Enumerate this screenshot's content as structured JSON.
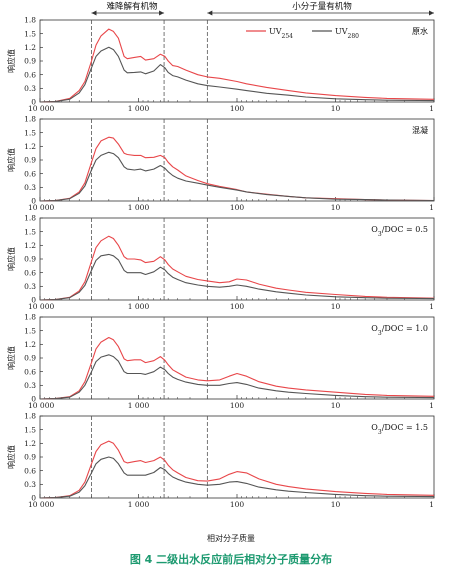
{
  "caption": "图 4 二级出水反应前后相对分子质量分布",
  "regions": {
    "left": "难降解有机物",
    "right": "小分子量有机物"
  },
  "xlabel": "相对分子质量",
  "ylabel": "响应值",
  "x_ticks": [
    "10 000",
    "1 000",
    "100",
    "10",
    "1"
  ],
  "y_ticks": [
    "0",
    "0.3",
    "0.6",
    "0.9",
    "1.2",
    "1.5",
    "1.8"
  ],
  "legend": [
    {
      "label": "UV",
      "sub": "254",
      "color": "#e8474a"
    },
    {
      "label": "UV",
      "sub": "280",
      "color": "#555555"
    }
  ],
  "chart_data": [
    {
      "type": "line",
      "panel_label": "原水",
      "xscale": "log",
      "xlim": [
        10000,
        1
      ],
      "ylim": [
        0,
        1.8
      ],
      "dividers": [
        3000,
        550,
        200
      ],
      "series": [
        {
          "name": "UV254",
          "x": [
            10000,
            7000,
            5000,
            4000,
            3500,
            3000,
            2700,
            2400,
            2000,
            1800,
            1600,
            1400,
            1300,
            1100,
            950,
            850,
            700,
            600,
            540,
            500,
            450,
            400,
            330,
            250,
            200,
            150,
            100,
            80,
            50,
            30,
            20,
            10,
            5,
            3,
            1
          ],
          "values": [
            0,
            0.01,
            0.08,
            0.25,
            0.45,
            0.9,
            1.25,
            1.45,
            1.6,
            1.55,
            1.4,
            1.0,
            0.95,
            0.98,
            1.0,
            0.92,
            0.95,
            1.05,
            1.0,
            0.9,
            0.8,
            0.78,
            0.7,
            0.6,
            0.55,
            0.52,
            0.45,
            0.4,
            0.32,
            0.25,
            0.2,
            0.14,
            0.1,
            0.08,
            0.06
          ]
        },
        {
          "name": "UV280",
          "x": [
            10000,
            7000,
            5000,
            4000,
            3500,
            3000,
            2700,
            2400,
            2000,
            1800,
            1600,
            1400,
            1300,
            1100,
            950,
            850,
            700,
            600,
            540,
            500,
            450,
            400,
            330,
            250,
            200,
            150,
            100,
            80,
            50,
            30,
            20,
            10,
            5,
            3,
            1
          ],
          "values": [
            0,
            0.01,
            0.06,
            0.2,
            0.38,
            0.75,
            1.0,
            1.12,
            1.2,
            1.15,
            1.0,
            0.7,
            0.64,
            0.65,
            0.66,
            0.62,
            0.68,
            0.82,
            0.75,
            0.65,
            0.58,
            0.55,
            0.48,
            0.4,
            0.36,
            0.33,
            0.28,
            0.25,
            0.19,
            0.15,
            0.11,
            0.07,
            0.05,
            0.04,
            0.03
          ]
        }
      ]
    },
    {
      "type": "line",
      "panel_label": "混凝",
      "xscale": "log",
      "xlim": [
        10000,
        1
      ],
      "ylim": [
        0,
        1.8
      ],
      "dividers": [
        3000,
        550,
        200
      ],
      "series": [
        {
          "name": "UV254",
          "x": [
            10000,
            7000,
            5000,
            4000,
            3500,
            3000,
            2700,
            2400,
            2000,
            1800,
            1600,
            1400,
            1300,
            1100,
            950,
            850,
            700,
            600,
            540,
            500,
            450,
            400,
            330,
            250,
            200,
            150,
            100,
            80,
            50,
            30,
            20,
            10,
            5,
            3,
            1
          ],
          "values": [
            0,
            0.01,
            0.06,
            0.2,
            0.4,
            0.85,
            1.15,
            1.32,
            1.4,
            1.38,
            1.25,
            1.05,
            1.02,
            1.0,
            1.0,
            0.95,
            0.96,
            1.0,
            0.95,
            0.85,
            0.75,
            0.68,
            0.55,
            0.45,
            0.38,
            0.32,
            0.25,
            0.2,
            0.15,
            0.1,
            0.07,
            0.05,
            0.03,
            0.02,
            0.01
          ]
        },
        {
          "name": "UV280",
          "x": [
            10000,
            7000,
            5000,
            4000,
            3500,
            3000,
            2700,
            2400,
            2000,
            1800,
            1600,
            1400,
            1300,
            1100,
            950,
            850,
            700,
            600,
            540,
            500,
            450,
            400,
            330,
            250,
            200,
            150,
            100,
            80,
            50,
            30,
            20,
            10,
            5,
            3,
            1
          ],
          "values": [
            0,
            0.01,
            0.05,
            0.17,
            0.33,
            0.68,
            0.9,
            1.0,
            1.07,
            1.04,
            0.95,
            0.75,
            0.7,
            0.68,
            0.7,
            0.66,
            0.7,
            0.78,
            0.72,
            0.64,
            0.56,
            0.5,
            0.44,
            0.39,
            0.35,
            0.3,
            0.24,
            0.2,
            0.14,
            0.1,
            0.07,
            0.04,
            0.03,
            0.02,
            0.01
          ]
        }
      ]
    },
    {
      "type": "line",
      "panel_label": "O3/DOC = 0.5",
      "xscale": "log",
      "xlim": [
        10000,
        1
      ],
      "ylim": [
        0,
        1.8
      ],
      "dividers": [
        3000,
        550,
        200
      ],
      "series": [
        {
          "name": "UV254",
          "x": [
            10000,
            7000,
            5000,
            4000,
            3500,
            3000,
            2700,
            2400,
            2000,
            1800,
            1600,
            1400,
            1300,
            1100,
            950,
            850,
            700,
            600,
            540,
            500,
            450,
            400,
            330,
            250,
            200,
            150,
            120,
            100,
            80,
            60,
            40,
            30,
            20,
            10,
            5,
            3,
            1
          ],
          "values": [
            0,
            0.01,
            0.06,
            0.2,
            0.4,
            0.85,
            1.15,
            1.3,
            1.4,
            1.35,
            1.2,
            0.95,
            0.9,
            0.9,
            0.88,
            0.82,
            0.85,
            0.95,
            0.88,
            0.78,
            0.68,
            0.62,
            0.52,
            0.45,
            0.42,
            0.38,
            0.4,
            0.46,
            0.44,
            0.35,
            0.26,
            0.22,
            0.17,
            0.12,
            0.08,
            0.06,
            0.04
          ]
        },
        {
          "name": "UV280",
          "x": [
            10000,
            7000,
            5000,
            4000,
            3500,
            3000,
            2700,
            2400,
            2000,
            1800,
            1600,
            1400,
            1300,
            1100,
            950,
            850,
            700,
            600,
            540,
            500,
            450,
            400,
            330,
            250,
            200,
            150,
            120,
            100,
            80,
            60,
            40,
            30,
            20,
            10,
            5,
            3,
            1
          ],
          "values": [
            0,
            0.01,
            0.05,
            0.17,
            0.32,
            0.65,
            0.87,
            0.97,
            1.0,
            0.97,
            0.88,
            0.65,
            0.6,
            0.6,
            0.6,
            0.56,
            0.62,
            0.72,
            0.66,
            0.58,
            0.5,
            0.45,
            0.38,
            0.33,
            0.3,
            0.28,
            0.3,
            0.33,
            0.3,
            0.24,
            0.18,
            0.15,
            0.11,
            0.07,
            0.05,
            0.04,
            0.03
          ]
        }
      ]
    },
    {
      "type": "line",
      "panel_label": "O3/DOC = 1.0",
      "xscale": "log",
      "xlim": [
        10000,
        1
      ],
      "ylim": [
        0,
        1.8
      ],
      "dividers": [
        3000,
        550,
        200
      ],
      "series": [
        {
          "name": "UV254",
          "x": [
            10000,
            7000,
            5000,
            4000,
            3500,
            3000,
            2700,
            2400,
            2000,
            1800,
            1600,
            1400,
            1300,
            1100,
            950,
            850,
            700,
            600,
            540,
            500,
            450,
            400,
            330,
            250,
            200,
            150,
            120,
            100,
            80,
            60,
            40,
            30,
            20,
            10,
            5,
            3,
            1
          ],
          "values": [
            0,
            0.01,
            0.05,
            0.18,
            0.38,
            0.8,
            1.1,
            1.25,
            1.35,
            1.3,
            1.15,
            0.88,
            0.84,
            0.86,
            0.86,
            0.8,
            0.84,
            0.93,
            0.85,
            0.75,
            0.64,
            0.58,
            0.48,
            0.42,
            0.4,
            0.42,
            0.5,
            0.56,
            0.5,
            0.38,
            0.28,
            0.24,
            0.2,
            0.15,
            0.1,
            0.08,
            0.06
          ]
        },
        {
          "name": "UV280",
          "x": [
            10000,
            7000,
            5000,
            4000,
            3500,
            3000,
            2700,
            2400,
            2000,
            1800,
            1600,
            1400,
            1300,
            1100,
            950,
            850,
            700,
            600,
            540,
            500,
            450,
            400,
            330,
            250,
            200,
            150,
            120,
            100,
            80,
            60,
            40,
            30,
            20,
            10,
            5,
            3,
            1
          ],
          "values": [
            0,
            0.01,
            0.04,
            0.15,
            0.3,
            0.6,
            0.82,
            0.92,
            0.97,
            0.93,
            0.83,
            0.6,
            0.56,
            0.56,
            0.56,
            0.54,
            0.6,
            0.7,
            0.64,
            0.56,
            0.48,
            0.43,
            0.37,
            0.32,
            0.3,
            0.3,
            0.34,
            0.36,
            0.32,
            0.24,
            0.18,
            0.15,
            0.12,
            0.08,
            0.05,
            0.04,
            0.03
          ]
        }
      ]
    },
    {
      "type": "line",
      "panel_label": "O3/DOC = 1.5",
      "xscale": "log",
      "xlim": [
        10000,
        1
      ],
      "ylim": [
        0,
        1.8
      ],
      "dividers": [
        3000,
        550,
        200
      ],
      "series": [
        {
          "name": "UV254",
          "x": [
            10000,
            7000,
            5000,
            4000,
            3500,
            3000,
            2700,
            2400,
            2000,
            1800,
            1600,
            1400,
            1300,
            1100,
            950,
            850,
            700,
            600,
            540,
            500,
            450,
            400,
            330,
            250,
            200,
            150,
            120,
            100,
            80,
            60,
            40,
            30,
            20,
            10,
            5,
            3,
            1
          ],
          "values": [
            0,
            0.01,
            0.05,
            0.17,
            0.35,
            0.75,
            1.02,
            1.17,
            1.25,
            1.2,
            1.05,
            0.8,
            0.77,
            0.8,
            0.82,
            0.78,
            0.82,
            0.9,
            0.82,
            0.72,
            0.62,
            0.55,
            0.45,
            0.38,
            0.37,
            0.42,
            0.52,
            0.58,
            0.55,
            0.42,
            0.3,
            0.25,
            0.2,
            0.14,
            0.1,
            0.08,
            0.06
          ]
        },
        {
          "name": "UV280",
          "x": [
            10000,
            7000,
            5000,
            4000,
            3500,
            3000,
            2700,
            2400,
            2000,
            1800,
            1600,
            1400,
            1300,
            1100,
            950,
            850,
            700,
            600,
            540,
            500,
            450,
            400,
            330,
            250,
            200,
            150,
            120,
            100,
            80,
            60,
            40,
            30,
            20,
            10,
            5,
            3,
            1
          ],
          "values": [
            0,
            0.01,
            0.04,
            0.13,
            0.27,
            0.55,
            0.75,
            0.85,
            0.9,
            0.87,
            0.75,
            0.55,
            0.5,
            0.5,
            0.5,
            0.5,
            0.56,
            0.67,
            0.62,
            0.54,
            0.46,
            0.41,
            0.35,
            0.3,
            0.28,
            0.3,
            0.35,
            0.36,
            0.32,
            0.24,
            0.18,
            0.15,
            0.12,
            0.08,
            0.05,
            0.04,
            0.03
          ]
        }
      ]
    }
  ]
}
